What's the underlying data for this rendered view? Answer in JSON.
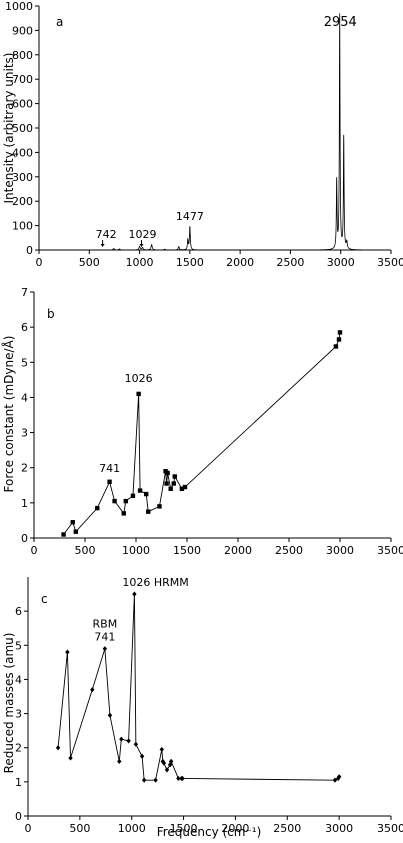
{
  "chart_data": [
    {
      "type": "line",
      "panel": "a",
      "xlabel": "",
      "ylabel": "Intensity (arbitrary units)",
      "xlim": [
        0,
        3500
      ],
      "ylim": [
        0,
        1000
      ],
      "xticks": [
        0,
        500,
        1000,
        1500,
        2000,
        2500,
        3000,
        3500
      ],
      "yticks": [
        0,
        100,
        200,
        300,
        400,
        500,
        600,
        700,
        800,
        900,
        1000
      ],
      "peaks": [
        {
          "x": 742,
          "y": 6,
          "w": 7
        },
        {
          "x": 800,
          "y": 4,
          "w": 7
        },
        {
          "x": 1000,
          "y": 15,
          "w": 7
        },
        {
          "x": 1029,
          "y": 10,
          "w": 7
        },
        {
          "x": 1120,
          "y": 22,
          "w": 7
        },
        {
          "x": 1250,
          "y": 3,
          "w": 7
        },
        {
          "x": 1390,
          "y": 14,
          "w": 6
        },
        {
          "x": 1480,
          "y": 40,
          "w": 5
        },
        {
          "x": 1500,
          "y": 95,
          "w": 5
        },
        {
          "x": 2960,
          "y": 280,
          "w": 4
        },
        {
          "x": 2990,
          "y": 960,
          "w": 4
        },
        {
          "x": 3030,
          "y": 460,
          "w": 4
        },
        {
          "x": 3060,
          "y": 30,
          "w": 6
        }
      ],
      "annotations": [
        {
          "label": "742",
          "x": 742,
          "arrow": true
        },
        {
          "label": "1029",
          "x": 1029,
          "arrow": true
        },
        {
          "label": "1477",
          "x": 1500,
          "arrow": false
        },
        {
          "label": "2954",
          "x": 2990,
          "arrow": false
        }
      ]
    },
    {
      "type": "line",
      "panel": "b",
      "xlabel": "",
      "ylabel": "Force constant (mDyne/Å)",
      "xlim": [
        0,
        3500
      ],
      "ylim": [
        0,
        7
      ],
      "xticks": [
        0,
        500,
        1000,
        1500,
        2000,
        2500,
        3000,
        3500
      ],
      "yticks": [
        0,
        1,
        2,
        3,
        4,
        5,
        6,
        7
      ],
      "marker": "square",
      "x": [
        290,
        380,
        410,
        620,
        741,
        790,
        880,
        900,
        970,
        1026,
        1040,
        1100,
        1120,
        1230,
        1290,
        1300,
        1310,
        1340,
        1370,
        1380,
        1450,
        1480,
        2960,
        2990,
        3000
      ],
      "y": [
        0.1,
        0.45,
        0.18,
        0.85,
        1.6,
        1.05,
        0.7,
        1.05,
        1.2,
        4.1,
        1.35,
        1.25,
        0.75,
        0.9,
        1.9,
        1.55,
        1.85,
        1.4,
        1.55,
        1.75,
        1.4,
        1.45,
        5.45,
        5.65,
        5.85
      ],
      "annotations": [
        {
          "label": "741",
          "x": 741,
          "y": 1.6
        },
        {
          "label": "1026",
          "x": 1026,
          "y": 4.1
        }
      ]
    },
    {
      "type": "line",
      "panel": "c",
      "xlabel": "Frequency (cm⁻¹)",
      "ylabel": "Reduced masses (amu)",
      "xlim": [
        0,
        3500
      ],
      "ylim": [
        0,
        7
      ],
      "xticks": [
        0,
        500,
        1000,
        1500,
        2000,
        2500,
        3000,
        3500
      ],
      "yticks": [
        0,
        1,
        2,
        3,
        4,
        5,
        6
      ],
      "marker": "diamond",
      "x": [
        290,
        380,
        410,
        620,
        741,
        790,
        880,
        900,
        970,
        1026,
        1040,
        1100,
        1120,
        1230,
        1290,
        1300,
        1310,
        1340,
        1370,
        1380,
        1450,
        1480,
        1490,
        2960,
        2990,
        3000
      ],
      "y": [
        2.0,
        4.8,
        1.7,
        3.7,
        4.9,
        2.95,
        1.6,
        2.25,
        2.2,
        6.5,
        2.1,
        1.75,
        1.05,
        1.05,
        1.95,
        1.6,
        1.55,
        1.35,
        1.5,
        1.6,
        1.1,
        1.1,
        1.1,
        1.05,
        1.1,
        1.15
      ],
      "annotations": [
        {
          "label": "RBM",
          "x": 741,
          "y": 4.9
        },
        {
          "label": "741",
          "x": 741,
          "y": 4.9
        },
        {
          "label": "1026 HRMM",
          "x": 1026,
          "y": 6.5
        }
      ]
    }
  ]
}
